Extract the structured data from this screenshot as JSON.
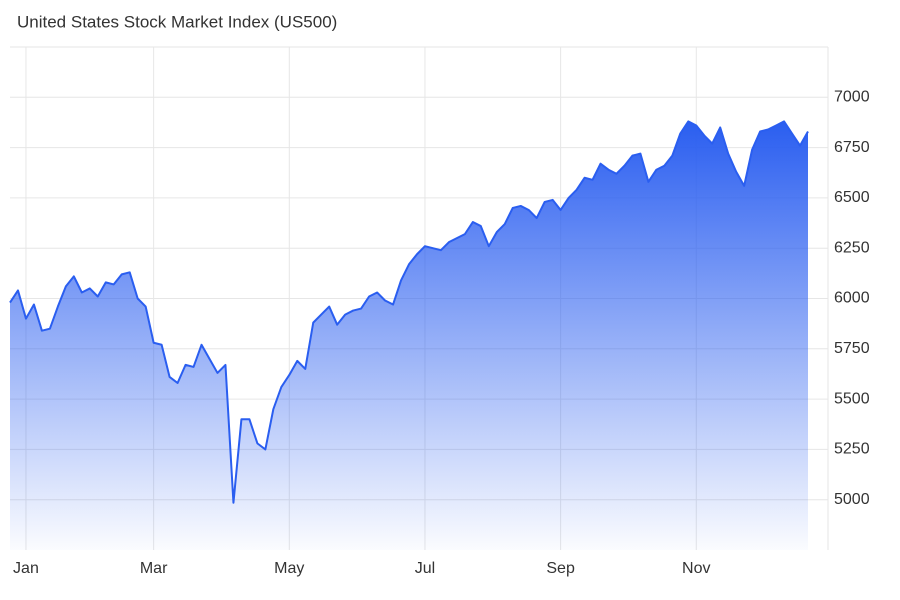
{
  "chart_data": {
    "type": "area",
    "title": "United States Stock Market Index (US500)",
    "color": "#2a5ef0",
    "categories": [
      null,
      null,
      "Jan",
      null,
      null,
      null,
      null,
      null,
      null,
      null,
      null,
      null,
      null,
      null,
      null,
      null,
      null,
      null,
      "Mar",
      null,
      null,
      null,
      null,
      null,
      null,
      null,
      null,
      null,
      null,
      null,
      null,
      null,
      null,
      null,
      null,
      "May",
      null,
      null,
      null,
      null,
      null,
      null,
      null,
      null,
      null,
      null,
      null,
      null,
      null,
      null,
      null,
      null,
      "Jul",
      null,
      null,
      null,
      null,
      null,
      null,
      null,
      null,
      null,
      null,
      null,
      null,
      null,
      null,
      null,
      null,
      "Sep",
      null,
      null,
      null,
      null,
      null,
      null,
      null,
      null,
      null,
      null,
      null,
      null,
      null,
      null,
      null,
      null,
      "Nov",
      null,
      null,
      null,
      null,
      null,
      null,
      null,
      null,
      null,
      null,
      null,
      null,
      null,
      null
    ],
    "values": [
      5980,
      6040,
      5900,
      5970,
      5840,
      5850,
      5960,
      6060,
      6110,
      6030,
      6050,
      6010,
      6080,
      6070,
      6120,
      6130,
      6000,
      5960,
      5780,
      5770,
      5610,
      5580,
      5670,
      5660,
      5770,
      5700,
      5630,
      5670,
      4985,
      5400,
      5400,
      5280,
      5250,
      5450,
      5560,
      5620,
      5690,
      5650,
      5880,
      5920,
      5960,
      5870,
      5920,
      5940,
      5950,
      6010,
      6030,
      5990,
      5970,
      6090,
      6170,
      6220,
      6260,
      6250,
      6240,
      6280,
      6300,
      6320,
      6380,
      6360,
      6260,
      6330,
      6370,
      6450,
      6460,
      6440,
      6400,
      6480,
      6490,
      6440,
      6500,
      6540,
      6600,
      6590,
      6670,
      6640,
      6620,
      6660,
      6710,
      6720,
      6580,
      6640,
      6660,
      6710,
      6820,
      6880,
      6860,
      6810,
      6770,
      6850,
      6720,
      6630,
      6560,
      6740,
      6830,
      6840,
      6860,
      6880,
      6820,
      6760,
      6830
    ],
    "ylim": [
      4750,
      7250
    ],
    "yticks": [
      5000,
      5250,
      5500,
      5750,
      6000,
      6250,
      6500,
      6750,
      7000
    ],
    "grid": true
  }
}
